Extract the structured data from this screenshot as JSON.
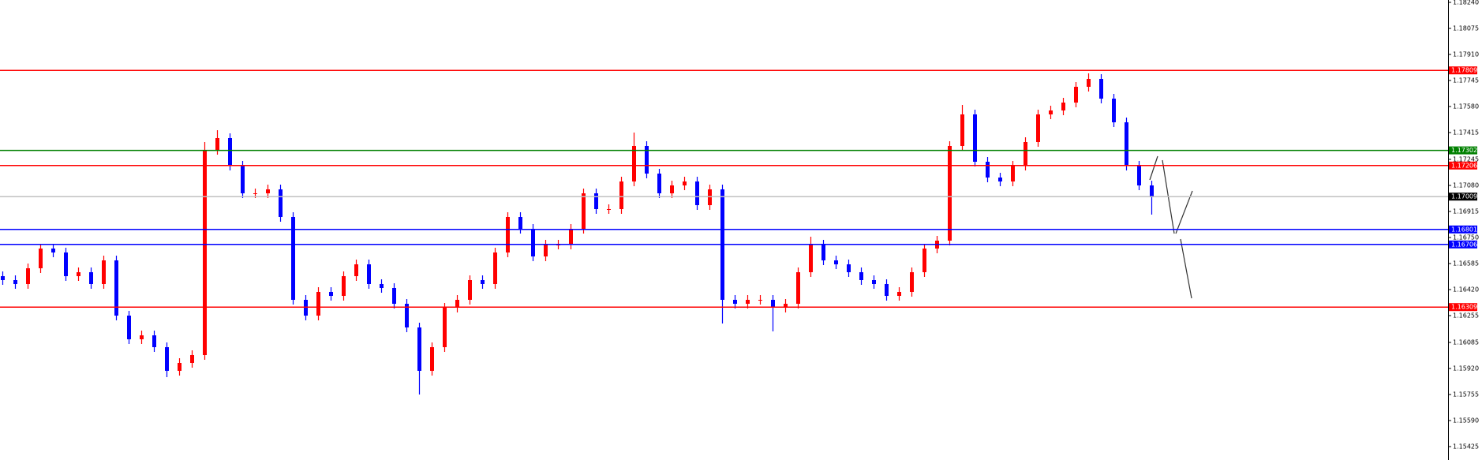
{
  "chart_data": {
    "type": "candlestick",
    "up_color": "#ff0000",
    "down_color": "#0000ff",
    "ylim": [
      1.1534,
      1.18255
    ],
    "yticks": [
      {
        "value": 1.1824,
        "label": "1.18240"
      },
      1.18075,
      {
        "value": 1.1791,
        "label": "1.17910"
      },
      1.17745,
      {
        "value": 1.1758,
        "label": "1.17580"
      },
      1.17415,
      1.17245,
      {
        "value": 1.1708,
        "label": "1.17080"
      },
      1.16915,
      {
        "value": 1.1675,
        "label": "1.16750"
      },
      1.16585,
      {
        "value": 1.1642,
        "label": "1.16420"
      },
      1.16255,
      1.16085,
      {
        "value": 1.1592,
        "label": "1.15920"
      },
      1.15755,
      {
        "value": 1.1559,
        "label": "1.15590"
      },
      1.15425
    ],
    "levels": [
      {
        "value": 1.17809,
        "color": "#ff0000",
        "box_color": "#ff0000"
      },
      {
        "value": 1.17302,
        "color": "#008000",
        "box_color": "#008000"
      },
      {
        "value": 1.17206,
        "color": "#ff0000",
        "box_color": "#ff0000"
      },
      {
        "value": 1.17009,
        "color": "#c0c0c0",
        "box_color": "#000000"
      },
      {
        "value": 1.16801,
        "color": "#0000ff",
        "box_color": "#0000ff"
      },
      {
        "value": 1.16706,
        "color": "#0000ff",
        "box_color": "#0000ff"
      },
      {
        "value": 1.16309,
        "color": "#ff0000",
        "box_color": "#ff0000"
      }
    ],
    "open": [
      1.16505,
      1.1648,
      1.16455,
      1.16555,
      1.1668,
      1.16655,
      1.16505,
      1.1653,
      1.16455,
      1.16605,
      1.16255,
      1.16105,
      1.1613,
      1.16055,
      1.15905,
      1.15955,
      1.16005,
      1.17305,
      1.1738,
      1.17205,
      1.1703,
      1.1703,
      1.17055,
      1.1688,
      1.16355,
      1.16255,
      1.16405,
      1.1638,
      1.16505,
      1.1658,
      1.16455,
      1.1643,
      1.1633,
      1.1618,
      1.15905,
      1.16055,
      1.16305,
      1.16355,
      1.1648,
      1.16455,
      1.16655,
      1.1688,
      1.16805,
      1.1663,
      1.16705,
      1.16705,
      1.16805,
      1.1703,
      1.1693,
      1.1693,
      1.17105,
      1.1733,
      1.17155,
      1.1703,
      1.1708,
      1.17105,
      1.16955,
      1.17055,
      1.16355,
      1.1633,
      1.16355,
      1.16355,
      1.16305,
      1.1633,
      1.1653,
      1.16705,
      1.16605,
      1.1658,
      1.1653,
      1.1648,
      1.16455,
      1.1638,
      1.16405,
      1.1653,
      1.1668,
      1.1673,
      1.1733,
      1.1753,
      1.1723,
      1.1713,
      1.17105,
      1.17205,
      1.17355,
      1.1753,
      1.17555,
      1.17605,
      1.17705,
      1.17755,
      1.1763,
      1.1748,
      1.17205,
      1.1708
    ],
    "high": [
      1.16535,
      1.1651,
      1.16585,
      1.1671,
      1.1671,
      1.16685,
      1.1656,
      1.1656,
      1.16635,
      1.16635,
      1.16285,
      1.1616,
      1.1616,
      1.16085,
      1.15985,
      1.16035,
      1.17355,
      1.1743,
      1.1741,
      1.17235,
      1.1706,
      1.17085,
      1.17085,
      1.1691,
      1.16385,
      1.16435,
      1.16435,
      1.16535,
      1.1661,
      1.1661,
      1.16485,
      1.1646,
      1.1636,
      1.1621,
      1.16085,
      1.16335,
      1.16385,
      1.1651,
      1.1651,
      1.16685,
      1.1691,
      1.1691,
      1.16835,
      1.16735,
      1.16735,
      1.16835,
      1.1706,
      1.1706,
      1.1696,
      1.17135,
      1.17415,
      1.1736,
      1.17185,
      1.1711,
      1.17135,
      1.17135,
      1.17085,
      1.17085,
      1.16385,
      1.16385,
      1.16385,
      1.16385,
      1.1636,
      1.1656,
      1.16755,
      1.16735,
      1.16635,
      1.1661,
      1.1656,
      1.1651,
      1.16485,
      1.16435,
      1.1656,
      1.1671,
      1.1676,
      1.1736,
      1.1759,
      1.1756,
      1.1726,
      1.1716,
      1.17235,
      1.17385,
      1.1756,
      1.17585,
      1.17635,
      1.17735,
      1.1779,
      1.17785,
      1.1766,
      1.1751,
      1.17235,
      1.1711
    ],
    "low": [
      1.1645,
      1.16425,
      1.16425,
      1.16525,
      1.16625,
      1.16475,
      1.16475,
      1.16425,
      1.16425,
      1.16225,
      1.16075,
      1.16075,
      1.16025,
      1.15865,
      1.15875,
      1.15925,
      1.15975,
      1.17275,
      1.17175,
      1.17,
      1.17,
      1.17,
      1.1685,
      1.16325,
      1.16225,
      1.16225,
      1.1635,
      1.1635,
      1.16475,
      1.16425,
      1.164,
      1.163,
      1.1615,
      1.15755,
      1.15875,
      1.16025,
      1.16275,
      1.16325,
      1.16425,
      1.16425,
      1.16625,
      1.16775,
      1.166,
      1.166,
      1.16675,
      1.16675,
      1.16775,
      1.169,
      1.169,
      1.169,
      1.17075,
      1.17125,
      1.17,
      1.17,
      1.1705,
      1.16925,
      1.16925,
      1.16205,
      1.163,
      1.163,
      1.16325,
      1.16155,
      1.16275,
      1.163,
      1.165,
      1.16575,
      1.1655,
      1.165,
      1.1645,
      1.16425,
      1.1635,
      1.1635,
      1.16375,
      1.165,
      1.1665,
      1.167,
      1.173,
      1.172,
      1.171,
      1.17075,
      1.17075,
      1.17175,
      1.17325,
      1.175,
      1.17525,
      1.17575,
      1.17675,
      1.176,
      1.1745,
      1.17175,
      1.1705,
      1.16895
    ],
    "close": [
      1.1648,
      1.16455,
      1.16555,
      1.1668,
      1.16655,
      1.16505,
      1.1653,
      1.16455,
      1.16605,
      1.16255,
      1.16105,
      1.1613,
      1.16055,
      1.15905,
      1.15955,
      1.16005,
      1.17305,
      1.1738,
      1.17205,
      1.1703,
      1.1703,
      1.17055,
      1.1688,
      1.16355,
      1.16255,
      1.16405,
      1.1638,
      1.16505,
      1.1658,
      1.16455,
      1.1643,
      1.1633,
      1.1618,
      1.15905,
      1.16055,
      1.16305,
      1.16355,
      1.1648,
      1.16455,
      1.16655,
      1.1688,
      1.16805,
      1.1663,
      1.16705,
      1.16705,
      1.16805,
      1.1703,
      1.1693,
      1.1693,
      1.17105,
      1.1733,
      1.17155,
      1.1703,
      1.1708,
      1.17105,
      1.16955,
      1.17055,
      1.16355,
      1.1633,
      1.16355,
      1.16355,
      1.16305,
      1.1633,
      1.1653,
      1.16705,
      1.16605,
      1.1658,
      1.1653,
      1.1648,
      1.16455,
      1.1638,
      1.16405,
      1.1653,
      1.1668,
      1.1673,
      1.1733,
      1.1753,
      1.1723,
      1.1713,
      1.17105,
      1.17205,
      1.17355,
      1.1753,
      1.17555,
      1.17605,
      1.17705,
      1.17755,
      1.1763,
      1.1748,
      1.17205,
      1.1708,
      1.17009
    ]
  }
}
